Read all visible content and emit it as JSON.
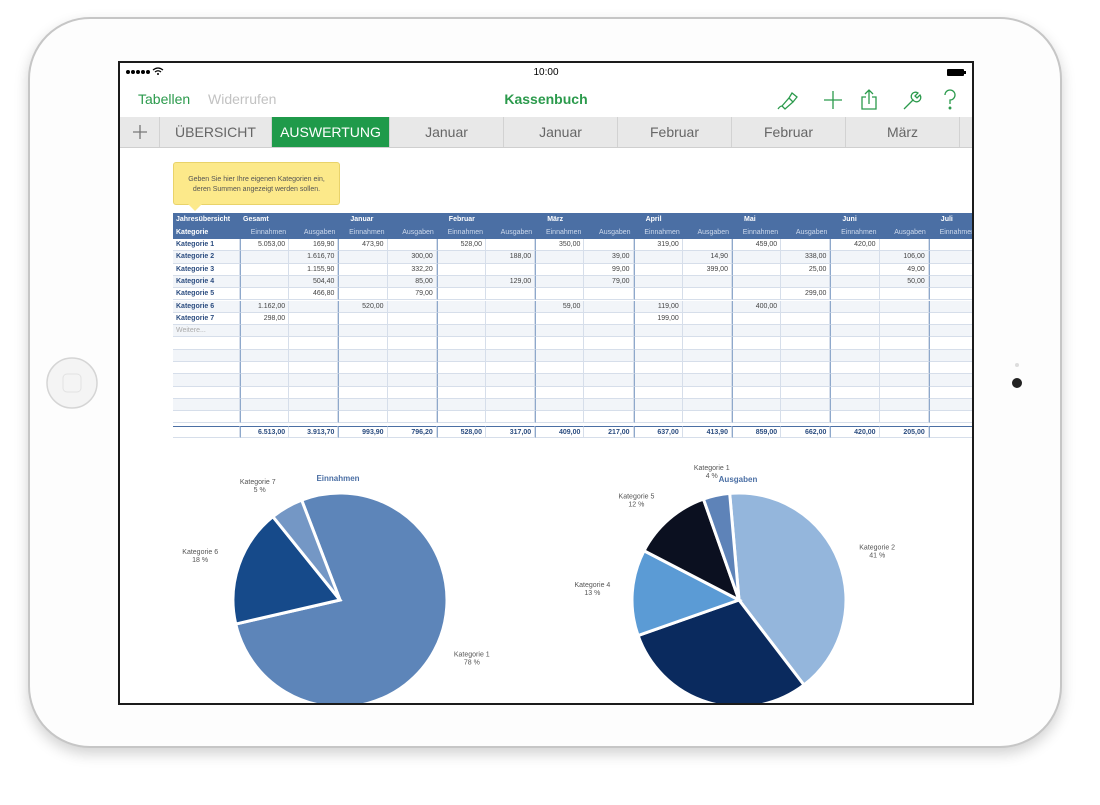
{
  "status_bar": {
    "time": "10:00"
  },
  "toolbar": {
    "left": [
      "Tabellen",
      "Widerrufen"
    ],
    "title": "Kassenbuch"
  },
  "tabs": [
    "ÜBERSICHT",
    "AUSWERTUNG",
    "Januar",
    "Januar",
    "Februar",
    "Februar",
    "März"
  ],
  "active_tab": 1,
  "tooltip": [
    "Geben Sie hier Ihre eigenen Kategorien ein,",
    "deren Summen angezeigt werden sollen."
  ],
  "table": {
    "groups": [
      "Jahresübersicht",
      "Gesamt",
      "Januar",
      "Februar",
      "März",
      "April",
      "Mai",
      "Juni",
      "Juli"
    ],
    "subheaders": [
      "Kategorie",
      "Einnahmen",
      "Ausgaben",
      "Einnahmen",
      "Ausgaben",
      "Einnahmen",
      "Ausgaben",
      "Einnahmen",
      "Ausgaben",
      "Einnahmen",
      "Ausgaben",
      "Einnahmen",
      "Ausgaben",
      "Einnahmen",
      "Ausgaben",
      "Einnahmen"
    ],
    "rows": [
      [
        "Kategorie 1",
        "5.053,00",
        "169,90",
        "473,90",
        null,
        "528,00",
        null,
        "350,00",
        null,
        "319,00",
        null,
        "459,00",
        null,
        "420,00",
        null
      ],
      [
        "Kategorie 2",
        null,
        "1.616,70",
        null,
        "300,00",
        null,
        "188,00",
        null,
        "39,00",
        null,
        "14,90",
        null,
        "338,00",
        null,
        "106,00"
      ],
      [
        "Kategorie 3",
        null,
        "1.155,90",
        null,
        "332,20",
        null,
        null,
        null,
        "99,00",
        null,
        "399,00",
        null,
        "25,00",
        null,
        "49,00"
      ],
      [
        "Kategorie 4",
        null,
        "504,40",
        null,
        "85,00",
        null,
        "129,00",
        null,
        "79,00",
        null,
        null,
        null,
        null,
        null,
        "50,00"
      ],
      [
        "Kategorie 5",
        null,
        "466,80",
        null,
        "79,00",
        null,
        null,
        null,
        null,
        null,
        null,
        null,
        "299,00",
        null,
        null
      ],
      [
        "Kategorie 6",
        "1.162,00",
        null,
        "520,00",
        null,
        null,
        null,
        "59,00",
        null,
        "119,00",
        null,
        "400,00",
        null,
        null,
        null
      ],
      [
        "Kategorie 7",
        "298,00",
        null,
        null,
        null,
        null,
        null,
        null,
        null,
        "199,00",
        null,
        null,
        null,
        null,
        null
      ]
    ],
    "more": "Weitere...",
    "totals": [
      null,
      "6.513,00",
      "3.913,70",
      "993,90",
      "796,20",
      "528,00",
      "317,00",
      "409,00",
      "217,00",
      "637,00",
      "413,90",
      "859,00",
      "662,00",
      "420,00",
      "205,00"
    ]
  },
  "charts": [
    {
      "type": "pie",
      "title": "Einnahmen",
      "categories": [
        "Kategorie 1",
        "Kategorie 6",
        "Kategorie 7"
      ],
      "values": [
        78,
        18,
        5
      ],
      "value_labels": [
        "78 %",
        "18 %",
        "5 %"
      ],
      "colors": [
        "#5d85b9",
        "#164a8a",
        "#7497c5"
      ]
    },
    {
      "type": "pie",
      "title": "Ausgaben",
      "categories": [
        "Kategorie 2",
        null,
        "Kategorie 4",
        "Kategorie 5",
        "Kategorie 1"
      ],
      "values": [
        41,
        30,
        13,
        12,
        4
      ],
      "value_labels": [
        "41 %",
        null,
        "13 %",
        "12 %",
        "4 %"
      ],
      "colors": [
        "#94b6dc",
        "#0a2a5e",
        "#5b9bd5",
        "#0b1020",
        "#5e83b8"
      ]
    }
  ]
}
